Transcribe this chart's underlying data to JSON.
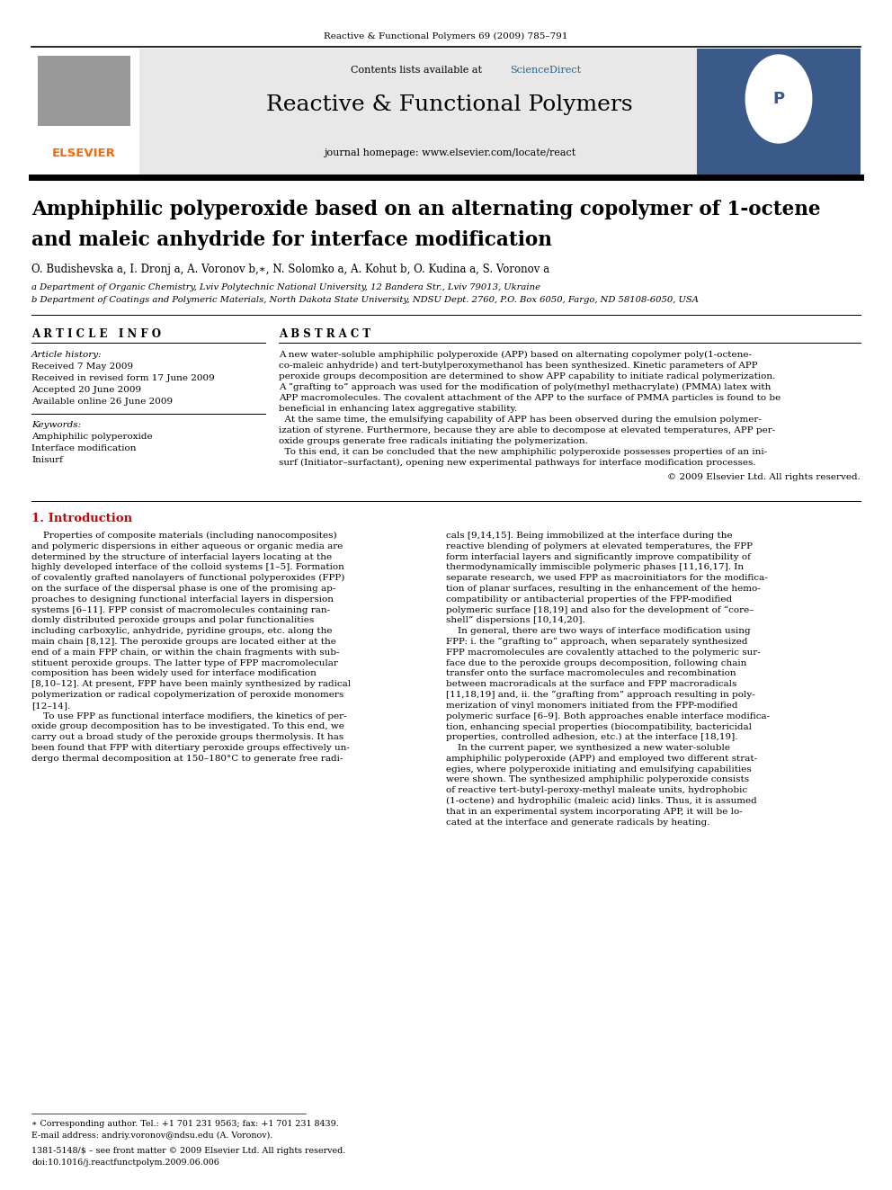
{
  "page_width": 9.92,
  "page_height": 13.23,
  "bg_color": "#ffffff",
  "journal_ref": "Reactive & Functional Polymers 69 (2009) 785–791",
  "journal_title": "Reactive & Functional Polymers",
  "journal_homepage": "journal homepage: www.elsevier.com/locate/react",
  "contents_available": "Contents lists available at ",
  "sciencedirect_text": "ScienceDirect",
  "sciencedirect_color": "#1a6496",
  "elsevier_color": "#FF6600",
  "article_title_line1": "Amphiphilic polyperoxide based on an alternating copolymer of 1-octene",
  "article_title_line2": "and maleic anhydride for interface modification",
  "authors": "O. Budishevska a, I. Dronj a, A. Voronov b,∗, N. Solomko a, A. Kohut b, O. Kudina a, S. Voronov a",
  "affil_a": "a Department of Organic Chemistry, Lviv Polytechnic National University, 12 Bandera Str., Lviv 79013, Ukraine",
  "affil_b": "b Department of Coatings and Polymeric Materials, North Dakota State University, NDSU Dept. 2760, P.O. Box 6050, Fargo, ND 58108-6050, USA",
  "article_info_header": "A R T I C L E   I N F O",
  "abstract_header": "A B S T R A C T",
  "article_history_label": "Article history:",
  "received": "Received 7 May 2009",
  "received_revised": "Received in revised form 17 June 2009",
  "accepted": "Accepted 20 June 2009",
  "available": "Available online 26 June 2009",
  "keywords_label": "Keywords:",
  "keyword1": "Amphiphilic polyperoxide",
  "keyword2": "Interface modification",
  "keyword3": "Inisurf",
  "copyright": "© 2009 Elsevier Ltd. All rights reserved.",
  "intro_header": "1. Introduction",
  "intro_header_color": "#cc0000",
  "footnote_star": "∗ Corresponding author. Tel.: +1 701 231 9563; fax: +1 701 231 8439.",
  "footnote_email": "E-mail address: andriy.voronov@ndsu.edu (A. Voronov).",
  "footnote_issn": "1381-5148/$ – see front matter © 2009 Elsevier Ltd. All rights reserved.",
  "footnote_doi": "doi:10.1016/j.reactfunctpolym.2009.06.006",
  "header_gray": "#e8e8e8",
  "elsevier_logo_bg": "#ffffff",
  "right_img_color": "#3a5a8a"
}
